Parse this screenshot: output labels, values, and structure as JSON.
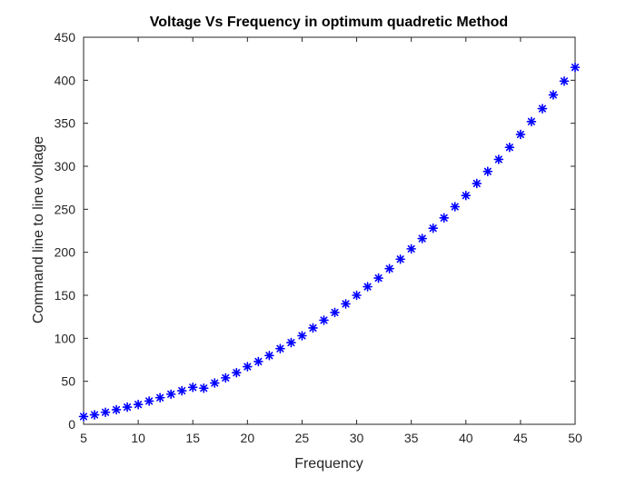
{
  "chart_data": {
    "type": "scatter",
    "title": "Voltage Vs Frequency in optimum quadretic Method",
    "xlabel": "Frequency",
    "ylabel": "Command line to line voltage",
    "xlim": [
      5,
      50
    ],
    "ylim": [
      0,
      450
    ],
    "xticks": [
      5,
      10,
      15,
      20,
      25,
      30,
      35,
      40,
      45,
      50
    ],
    "yticks": [
      0,
      50,
      100,
      150,
      200,
      250,
      300,
      350,
      400,
      450
    ],
    "grid": false,
    "legend": "none",
    "marker": "asterisk",
    "marker_color": "#0000ff",
    "axes_color": "#262626",
    "series": [
      {
        "x": [
          5,
          6,
          7,
          8,
          9,
          10,
          11,
          12,
          13,
          14,
          15,
          16,
          17,
          18,
          19,
          20,
          21,
          22,
          23,
          24,
          25,
          26,
          27,
          28,
          29,
          30,
          31,
          32,
          33,
          34,
          35,
          36,
          37,
          38,
          39,
          40,
          41,
          42,
          43,
          44,
          45,
          46,
          47,
          48,
          49,
          50
        ],
        "y": [
          9,
          11,
          14,
          17,
          20,
          23,
          27,
          31,
          35,
          39,
          43,
          42,
          48,
          54,
          60,
          67,
          73,
          80,
          88,
          95,
          103,
          112,
          121,
          130,
          140,
          150,
          160,
          170,
          181,
          192,
          204,
          216,
          228,
          240,
          253,
          266,
          280,
          294,
          308,
          322,
          337,
          352,
          367,
          383,
          399,
          415
        ]
      }
    ]
  }
}
